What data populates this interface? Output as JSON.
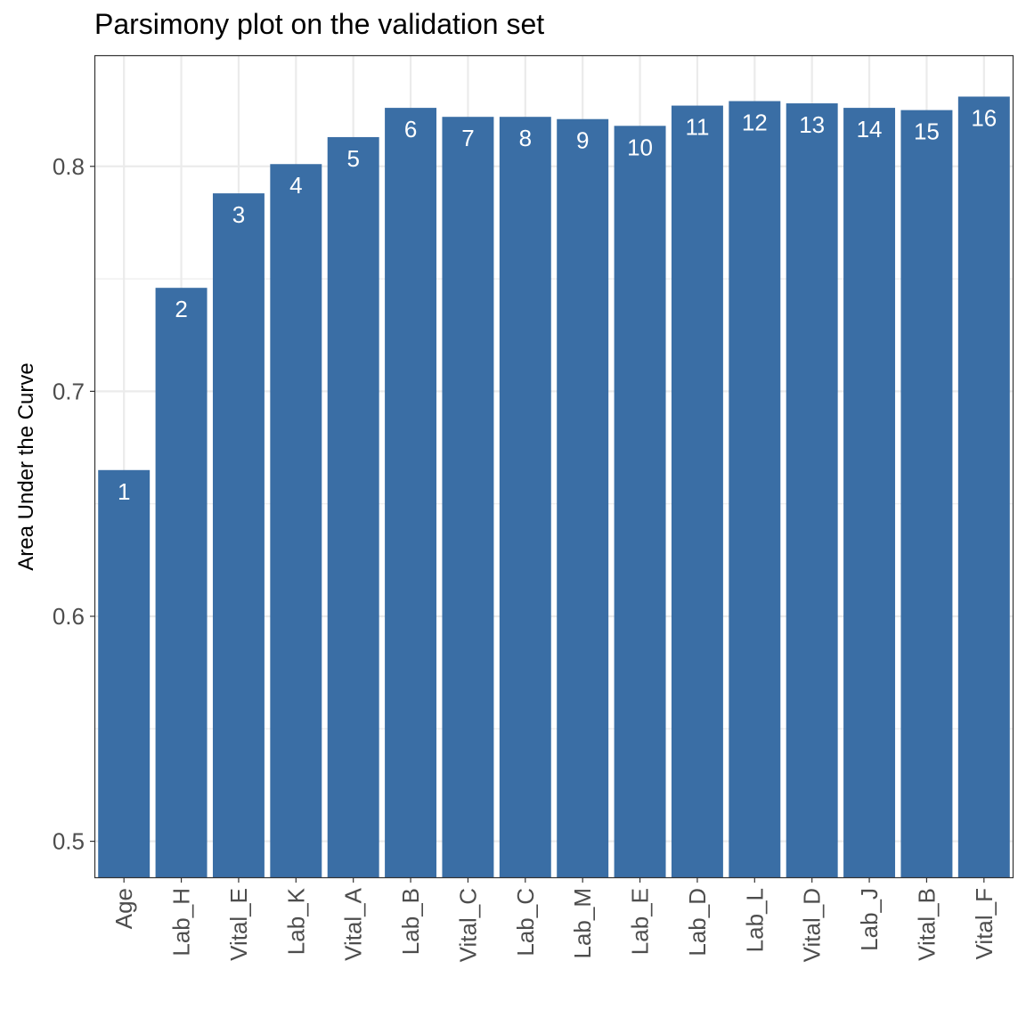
{
  "chart_data": {
    "type": "bar",
    "title": "Parsimony plot on the validation set",
    "xlabel": "",
    "ylabel": "Area Under the Curve",
    "categories": [
      "Age",
      "Lab_H",
      "Vital_E",
      "Lab_K",
      "Vital_A",
      "Lab_B",
      "Vital_C",
      "Lab_C",
      "Lab_M",
      "Lab_E",
      "Lab_D",
      "Lab_L",
      "Vital_D",
      "Lab_J",
      "Vital_B",
      "Vital_F"
    ],
    "values": [
      0.665,
      0.746,
      0.788,
      0.801,
      0.813,
      0.826,
      0.822,
      0.822,
      0.821,
      0.818,
      0.827,
      0.829,
      0.828,
      0.826,
      0.825,
      0.831
    ],
    "bar_labels": [
      "1",
      "2",
      "3",
      "4",
      "5",
      "6",
      "7",
      "8",
      "9",
      "10",
      "11",
      "12",
      "13",
      "14",
      "15",
      "16"
    ],
    "ylim": [
      0.484,
      0.849
    ],
    "yticks": [
      0.5,
      0.6,
      0.7,
      0.8
    ],
    "ytick_labels": [
      "0.5",
      "0.6",
      "0.7",
      "0.8"
    ],
    "grid": true,
    "legend": "none",
    "colors": {
      "bar": "#3a6ea5",
      "grid": "#ebebeb",
      "panel_border": "#333333",
      "tick_text": "#4d4d4d",
      "bar_label_text": "#ffffff"
    }
  }
}
